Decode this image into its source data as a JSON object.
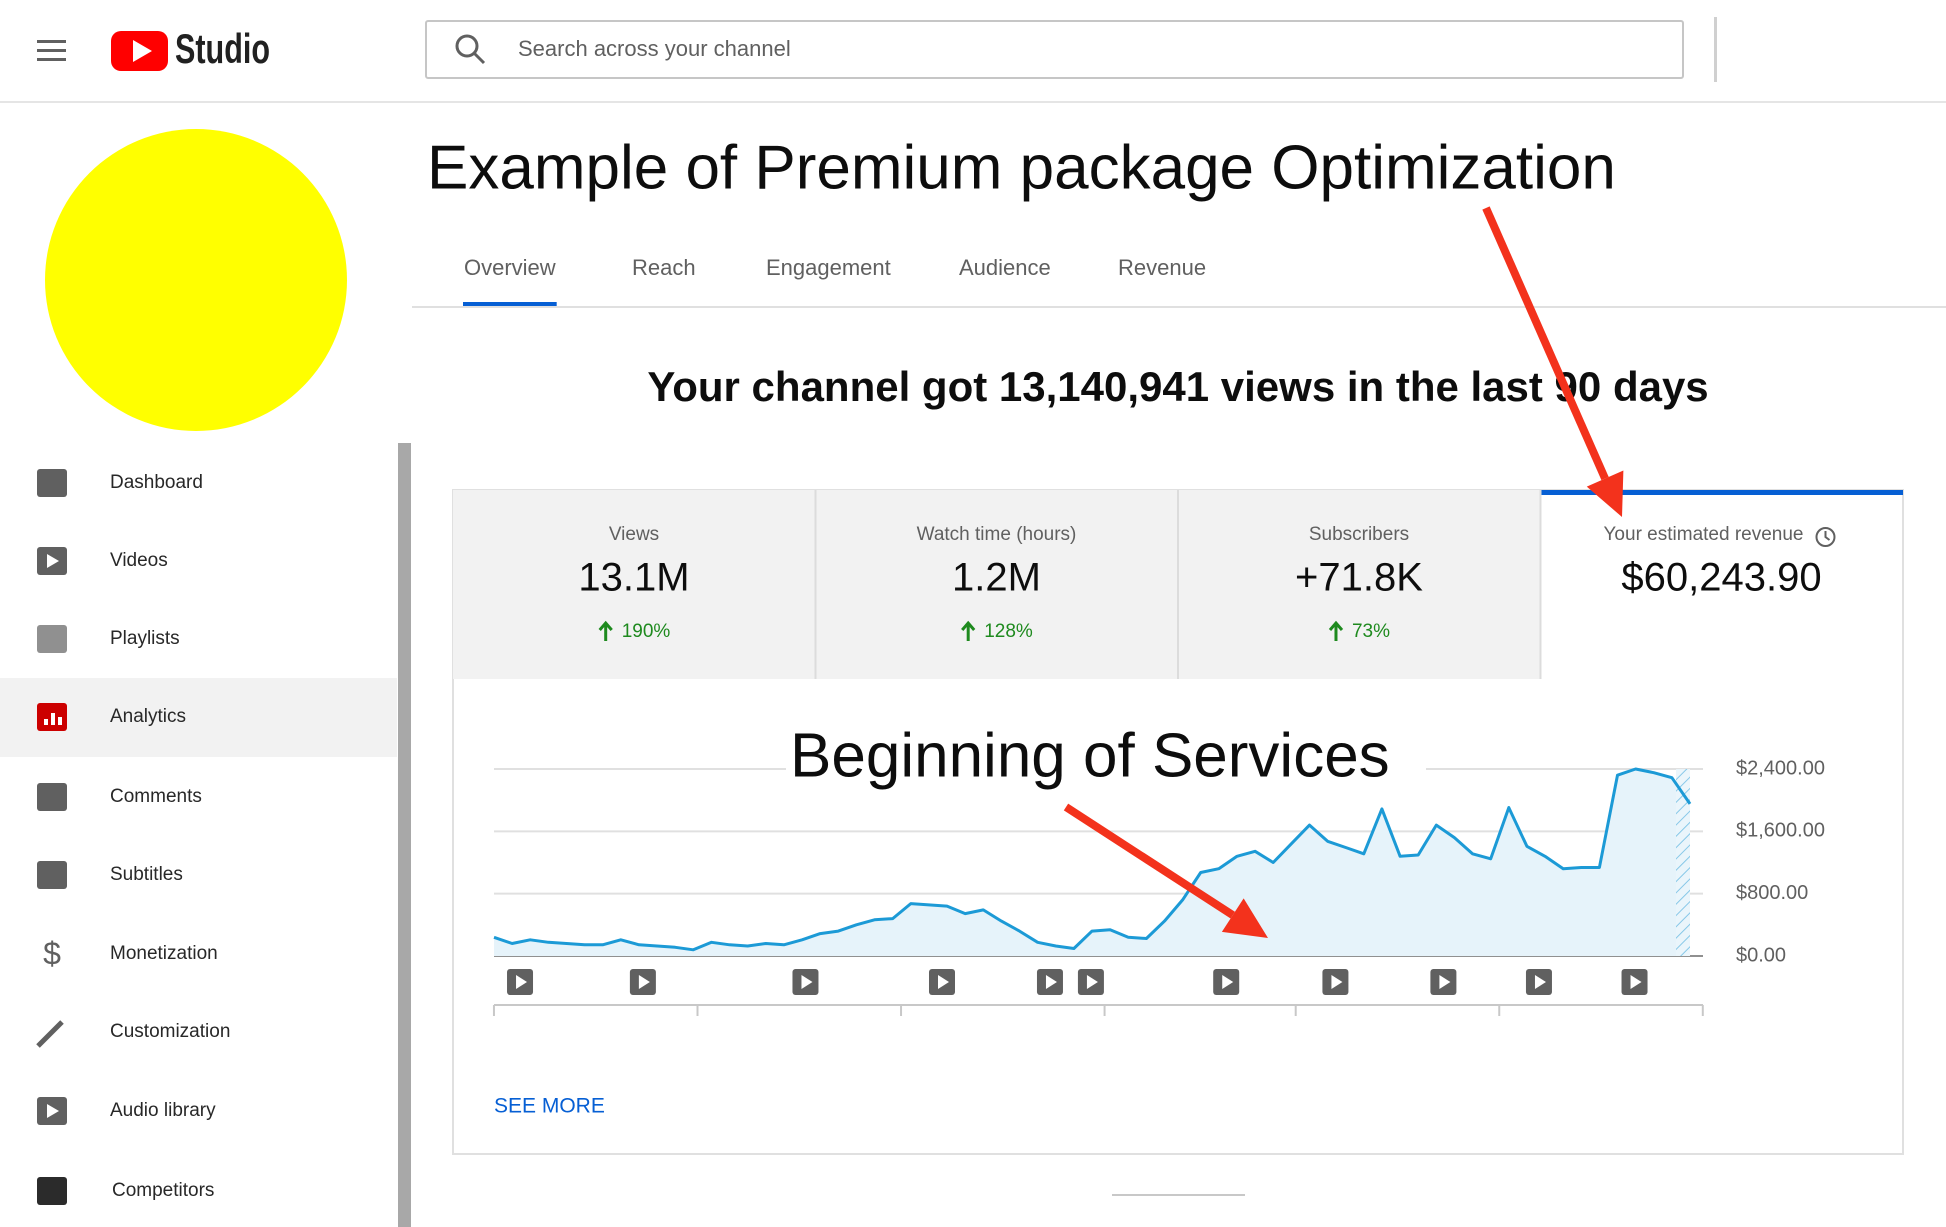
{
  "header": {
    "logo_text": "Studio",
    "search_placeholder": "Search across your channel"
  },
  "sidebar": {
    "items": [
      "Dashboard",
      "Videos",
      "Playlists",
      "Analytics",
      "Comments",
      "Subtitles",
      "Monetization",
      "Customization",
      "Audio library",
      "Competitors"
    ],
    "active": 3
  },
  "title": "Example of Premium package Optimization",
  "tabs": {
    "items": [
      "Overview",
      "Reach",
      "Engagement",
      "Audience",
      "Revenue"
    ],
    "active": 0
  },
  "headline": "Your channel got 13,140,941 views in the last 90 days",
  "metrics": [
    {
      "label": "Views",
      "value": "13.1M",
      "change": "190%"
    },
    {
      "label": "Watch time (hours)",
      "value": "1.2M",
      "change": "128%"
    },
    {
      "label": "Subscribers",
      "value": "+71.8K",
      "change": "73%"
    },
    {
      "label": "Your estimated revenue",
      "value": "$60,243.90"
    }
  ],
  "chart": {
    "type": "line",
    "annotation": "Beginning of Services",
    "color": "#1c9ad6",
    "values": [
      240,
      160,
      208,
      176,
      160,
      144,
      144,
      208,
      144,
      128,
      112,
      80,
      176,
      144,
      128,
      160,
      144,
      208,
      288,
      320,
      400,
      464,
      480,
      672,
      656,
      640,
      544,
      592,
      448,
      320,
      176,
      128,
      96,
      320,
      336,
      240,
      224,
      448,
      720,
      1072,
      1120,
      1280,
      1344,
      1200,
      1440,
      1680,
      1472,
      1392,
      1312,
      1888,
      1280,
      1296,
      1680,
      1520,
      1312,
      1248,
      1904,
      1408,
      1280,
      1120,
      1136,
      1136,
      2320,
      2400,
      2352,
      2288,
      1952
    ],
    "ylim": [
      0,
      2400
    ],
    "yticks": [
      {
        "value": 0,
        "label": "$0.00"
      },
      {
        "value": 800,
        "label": "$800.00"
      },
      {
        "value": 1600,
        "label": "$1,600.00"
      },
      {
        "value": 2400,
        "label": "$2,400.00"
      }
    ],
    "grid": true
  },
  "see_more": "SEE MORE"
}
